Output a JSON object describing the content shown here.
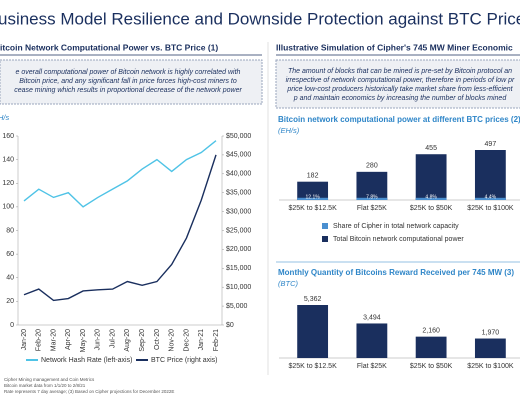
{
  "title": "usiness Model Resilience and Downside Protection against BTC Price Dr",
  "panels": [
    {
      "heading": "itcoin Network Computational Power vs. BTC Price (1)",
      "note": "e overall computational power of Bitcoin network is highly correlated with Bitcoin price, and any significant fall in price forces high-cost miners to cease mining which results in proportional decrease of the network power"
    },
    {
      "heading": "Illustrative Simulation of Cipher's 745 MW Miner Economic",
      "note": "The amount of blocks that can be mined is pre-set by Bitcoin protocol an irrespective of network computational power, therefore in periods of low pr price low-cost producers historically take market share from less-efficient p and maintain economics by increasing the number of blocks mined"
    }
  ],
  "chart_data": [
    {
      "type": "line",
      "ylabel": "H/s",
      "categories": [
        "Jan-20",
        "Feb-20",
        "Mar-20",
        "Apr-20",
        "May-20",
        "Jun-20",
        "Jul-20",
        "Aug-20",
        "Sep-20",
        "Oct-20",
        "Nov-20",
        "Dec-20",
        "Jan-21",
        "Feb-21"
      ],
      "series": [
        {
          "name": "Network Hash Rate (left-axis)",
          "color": "#4fc3e6",
          "values": [
            105,
            115,
            108,
            112,
            100,
            108,
            115,
            122,
            132,
            140,
            130,
            140,
            146,
            156
          ]
        },
        {
          "name": "BTC Price (right axis)",
          "color": "#1a2f5e",
          "axis": "y2",
          "values": [
            8000,
            9500,
            6500,
            7000,
            9000,
            9300,
            9500,
            11500,
            10500,
            11500,
            16000,
            23000,
            33000,
            45000
          ]
        }
      ],
      "ylim": [
        0,
        160
      ],
      "yticks": [
        0,
        20,
        40,
        60,
        80,
        100,
        120,
        140,
        160
      ],
      "y2lim": [
        0,
        50000
      ],
      "y2ticks": [
        {
          "value": 0,
          "label": "$0"
        },
        {
          "value": 5000,
          "label": "$5,000"
        },
        {
          "value": 10000,
          "label": "$10,000"
        },
        {
          "value": 15000,
          "label": "$15,000"
        },
        {
          "value": 20000,
          "label": "$20,000"
        },
        {
          "value": 25000,
          "label": "$25,000"
        },
        {
          "value": 30000,
          "label": "$30,000"
        },
        {
          "value": 35000,
          "label": "$35,000"
        },
        {
          "value": 40000,
          "label": "$40,000"
        },
        {
          "value": 45000,
          "label": "$45,000"
        },
        {
          "value": 50000,
          "label": "$50,000"
        }
      ],
      "legend": "bottom"
    },
    {
      "type": "bar",
      "title": "Bitcoin network computational power at different BTC prices (2)",
      "subtitle": "(EH/s)",
      "categories": [
        "$25K to $12.5K",
        "Flat $25K",
        "$25K to $50K",
        "$25K to $100K"
      ],
      "series": [
        {
          "name": "Share of Cipher in total network capacity",
          "color": "#4a8fd0",
          "values": [
            12.1,
            7.8,
            4.8,
            4.4
          ],
          "value_labels": [
            "12.1%",
            "7.8%",
            "4.8%",
            "4.4%"
          ]
        },
        {
          "name": "Total Bitcoin network computational power",
          "color": "#1a2f5e",
          "values": [
            182,
            280,
            455,
            497
          ]
        }
      ],
      "legend": "bottom"
    },
    {
      "type": "bar",
      "title": "Monthly Quantity of Bitcoins Reward Received per 745 MW (3)",
      "subtitle": "(BTC)",
      "categories": [
        "$25K to $12.5K",
        "Flat $25K",
        "$25K to $50K",
        "$25K to $100K"
      ],
      "values": [
        5362,
        3494,
        2160,
        1970
      ],
      "value_labels": [
        "5,362",
        "3,494",
        "2,160",
        "1,970"
      ],
      "color": "#1a2f5e"
    }
  ],
  "footnotes": [
    "Cipher Mining management and Coin Metrics",
    "Bitcoin market data from 1/1/20 to 2/8/21",
    "Rate represents 7 day average; (3) Based on Cipher projections for December 2022E"
  ]
}
